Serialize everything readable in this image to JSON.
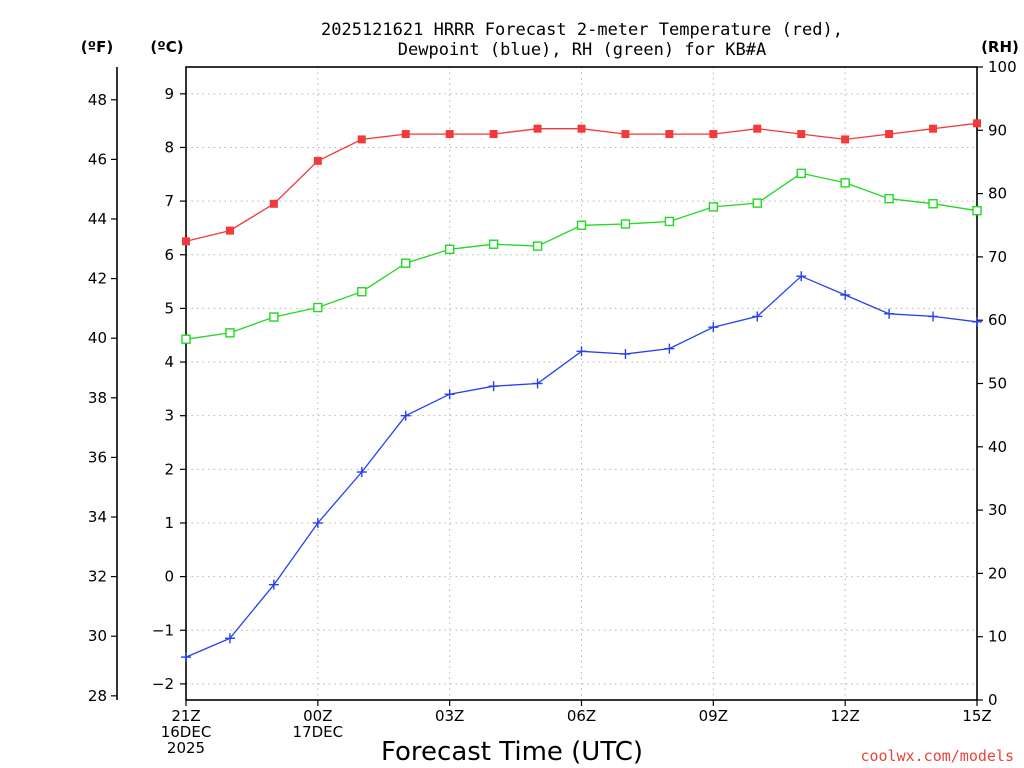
{
  "chart_data": {
    "type": "line",
    "title_line1": "2025121621 HRRR Forecast 2-meter Temperature (red),",
    "title_line2": "Dewpoint (blue), RH (green) for KB#A",
    "unit_f": "(ºF)",
    "unit_c": "(ºC)",
    "unit_rh": "(RH)",
    "xlabel": "Forecast Time (UTC)",
    "credit": "coolwx.com/models",
    "x_hours": [
      0,
      1,
      2,
      3,
      4,
      5,
      6,
      7,
      8,
      9,
      10,
      11,
      12,
      13,
      14,
      15,
      16,
      17,
      18
    ],
    "xlim": [
      0,
      18
    ],
    "x_ticks": [
      {
        "hour": 0,
        "lines": [
          "21Z",
          "16DEC",
          "2025"
        ]
      },
      {
        "hour": 3,
        "lines": [
          "00Z",
          "17DEC"
        ]
      },
      {
        "hour": 6,
        "lines": [
          "03Z"
        ]
      },
      {
        "hour": 9,
        "lines": [
          "06Z"
        ]
      },
      {
        "hour": 12,
        "lines": [
          "09Z"
        ]
      },
      {
        "hour": 15,
        "lines": [
          "12Z"
        ]
      },
      {
        "hour": 18,
        "lines": [
          "15Z"
        ]
      }
    ],
    "ylim_c": [
      -2.3,
      9.5
    ],
    "y_ticks_c": [
      "-2",
      "-1",
      "0",
      "1",
      "2",
      "3",
      "4",
      "5",
      "6",
      "7",
      "8",
      "9"
    ],
    "y_ticks_f": [
      "28",
      "30",
      "32",
      "34",
      "36",
      "38",
      "40",
      "42",
      "44",
      "46",
      "48"
    ],
    "ylim_rh": [
      0,
      100
    ],
    "y_ticks_rh": [
      "0",
      "10",
      "20",
      "30",
      "40",
      "50",
      "60",
      "70",
      "80",
      "90",
      "100"
    ],
    "series": [
      {
        "name": "Temperature",
        "unit": "C",
        "color": "#f23a3a",
        "marker": "filled-square",
        "values": [
          6.25,
          6.45,
          6.95,
          7.75,
          8.15,
          8.25,
          8.25,
          8.25,
          8.35,
          8.35,
          8.25,
          8.25,
          8.25,
          8.35,
          8.25,
          8.15,
          8.25,
          8.35,
          8.45
        ]
      },
      {
        "name": "Dewpoint",
        "unit": "C",
        "color": "#2440f0",
        "marker": "plus",
        "values": [
          -1.5,
          -1.15,
          -0.15,
          1.0,
          1.95,
          3.0,
          3.4,
          3.55,
          3.6,
          4.2,
          4.15,
          4.25,
          4.65,
          4.85,
          5.6,
          5.25,
          4.9,
          4.85,
          4.75
        ]
      },
      {
        "name": "RH",
        "unit": "%",
        "color": "#22d822",
        "marker": "open-square",
        "values": [
          57,
          58,
          60.5,
          62,
          64.5,
          69,
          71.2,
          72,
          71.7,
          75,
          75.2,
          75.6,
          77.9,
          78.5,
          83.2,
          81.7,
          79.2,
          78.4,
          77.3
        ]
      }
    ]
  }
}
